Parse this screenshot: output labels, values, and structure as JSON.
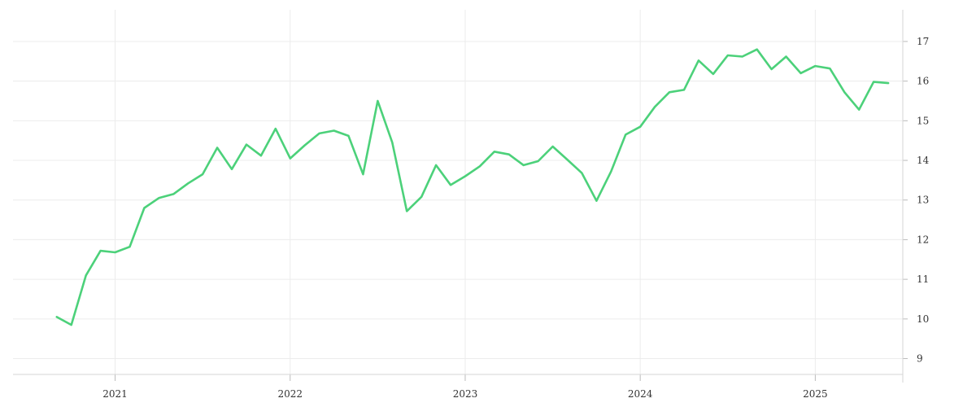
{
  "chart_data": {
    "type": "line",
    "title": "",
    "xlabel": "",
    "ylabel": "",
    "x_ticks": [
      "2021",
      "2022",
      "2023",
      "2024",
      "2025"
    ],
    "y_ticks": [
      "9",
      "10",
      "11",
      "12",
      "13",
      "14",
      "15",
      "16",
      "17"
    ],
    "xlim": [
      "2020-06",
      "2025-07"
    ],
    "ylim": [
      8.6,
      17.8
    ],
    "grid": true,
    "legend": "none",
    "line_color": "#4cd17a",
    "series": [
      {
        "x": [
          "2020-09",
          "2020-10",
          "2020-11",
          "2020-12",
          "2021-01",
          "2021-02",
          "2021-03",
          "2021-04",
          "2021-05",
          "2021-06",
          "2021-07",
          "2021-08",
          "2021-09",
          "2021-10",
          "2021-11",
          "2021-12",
          "2022-01",
          "2022-02",
          "2022-03",
          "2022-04",
          "2022-05",
          "2022-06",
          "2022-07",
          "2022-08",
          "2022-09",
          "2022-10",
          "2022-11",
          "2022-12",
          "2023-01",
          "2023-02",
          "2023-03",
          "2023-04",
          "2023-05",
          "2023-06",
          "2023-07",
          "2023-08",
          "2023-09",
          "2023-10",
          "2023-11",
          "2023-12",
          "2024-01",
          "2024-02",
          "2024-03",
          "2024-04",
          "2024-05",
          "2024-06",
          "2024-07",
          "2024-08",
          "2024-09",
          "2024-10",
          "2024-11",
          "2024-12",
          "2025-01",
          "2025-02",
          "2025-03",
          "2025-04",
          "2025-05",
          "2025-06"
        ],
        "values": [
          10.05,
          9.85,
          11.1,
          11.72,
          11.68,
          11.82,
          12.8,
          13.05,
          13.15,
          13.42,
          13.65,
          14.32,
          13.78,
          14.4,
          14.12,
          14.8,
          14.05,
          14.38,
          14.68,
          14.75,
          14.62,
          13.65,
          15.5,
          14.45,
          12.72,
          13.08,
          13.88,
          13.38,
          13.6,
          13.85,
          14.22,
          14.15,
          13.88,
          13.98,
          14.35,
          14.02,
          13.68,
          12.98,
          13.72,
          14.65,
          14.85,
          15.35,
          15.72,
          15.78,
          16.52,
          16.18,
          16.65,
          16.62,
          16.8,
          16.3,
          16.62,
          16.2,
          16.38,
          16.32,
          15.72,
          15.28,
          15.98,
          15.95
        ]
      }
    ]
  }
}
